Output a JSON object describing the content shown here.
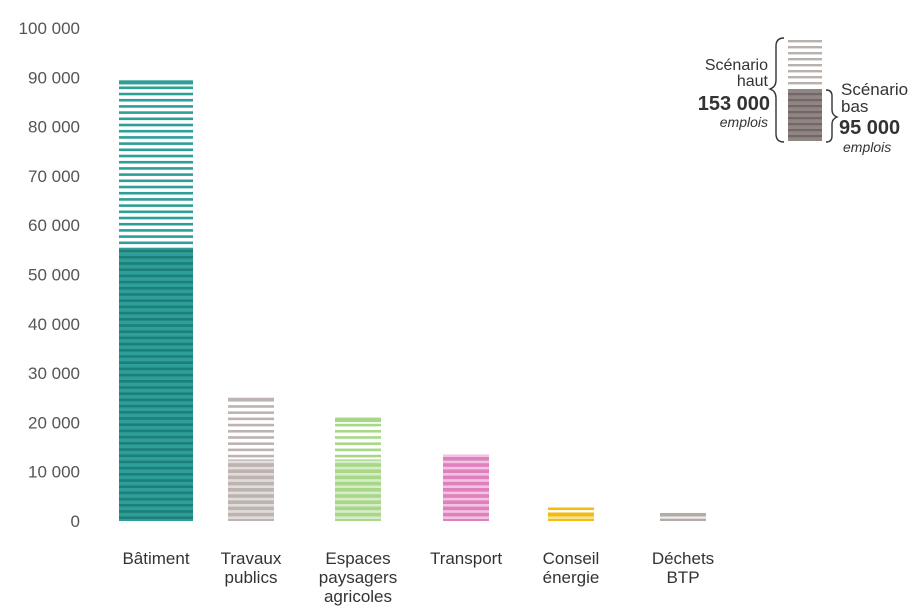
{
  "chart_data": {
    "type": "bar",
    "title": "",
    "xlabel": "",
    "ylabel": "",
    "ylim": [
      0,
      100000
    ],
    "y_ticks": [
      "0",
      "10 000",
      "20 000",
      "30 000",
      "40 000",
      "50 000",
      "60 000",
      "70 000",
      "80 000",
      "90 000",
      "100 000"
    ],
    "y_tick_values": [
      0,
      10000,
      20000,
      30000,
      40000,
      50000,
      60000,
      70000,
      80000,
      90000,
      100000
    ],
    "grid": false,
    "categories": [
      [
        "Bâtiment"
      ],
      [
        "Travaux",
        "publics"
      ],
      [
        "Espaces",
        "paysagers",
        "agricoles"
      ],
      [
        "Transport"
      ],
      [
        "Conseil",
        "énergie"
      ],
      [
        "Déchets",
        "BTP"
      ]
    ],
    "series": [
      {
        "name": "Scénario bas",
        "values": [
          54500,
          12500,
          12500,
          13500,
          1800,
          700
        ]
      },
      {
        "name": "Scénario haut",
        "values": [
          89000,
          25000,
          20500,
          13500,
          2700,
          1300
        ]
      }
    ],
    "colors": {
      "low": [
        "#2e9f98",
        "#bdb3b0",
        "#a7d787",
        "#e07fbd",
        "#f2bd12",
        "#b3aba8"
      ],
      "high": [
        "#2e9f98",
        "#bdb3b0",
        "#a7d787",
        "#e07fbd",
        "#f2bd12",
        "#b3aba8"
      ],
      "stripe_low": "#1d7f79",
      "legend_low": "#8f8583",
      "legend_high": "#b9b1ae"
    },
    "legend": {
      "placement": "top-right",
      "high_label": [
        "Scénario",
        "haut"
      ],
      "high_value": "153 000",
      "high_unit": "emplois",
      "low_label": [
        "Scénario",
        "bas"
      ],
      "low_value": "95 000",
      "low_unit": "emplois"
    }
  }
}
